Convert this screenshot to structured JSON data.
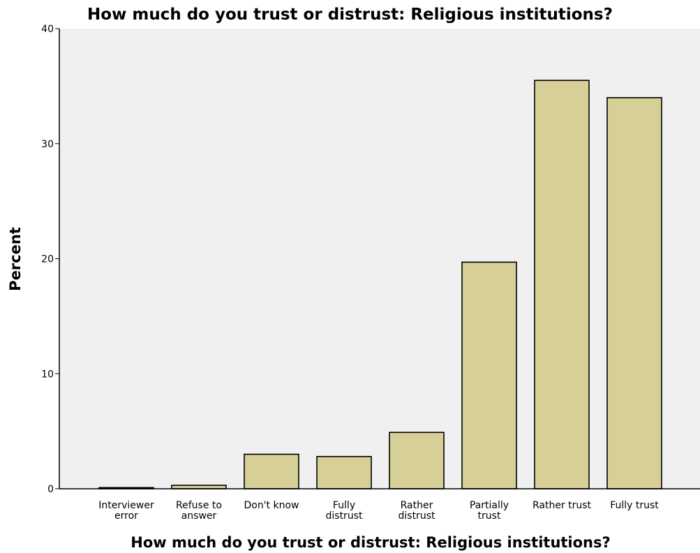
{
  "chart_data": {
    "type": "bar",
    "title": "How much do you trust or distrust: Religious institutions?",
    "xlabel": "How much do you trust or distrust: Religious institutions?",
    "ylabel": "Percent",
    "categories": [
      [
        "Interviewer",
        "error"
      ],
      [
        "Refuse to",
        "answer"
      ],
      [
        "Don't know"
      ],
      [
        "Fully",
        "distrust"
      ],
      [
        "Rather",
        "distrust"
      ],
      [
        "Partially",
        "trust"
      ],
      [
        "Rather trust"
      ],
      [
        "Fully trust"
      ]
    ],
    "values": [
      0.1,
      0.3,
      3.0,
      2.8,
      4.9,
      19.7,
      35.5,
      34.0
    ],
    "ylim": [
      0,
      40
    ],
    "yticks": [
      0,
      10,
      20,
      30,
      40
    ],
    "grid": false,
    "bar_color": "#d6cf98",
    "bar_edge_color": "#000000",
    "plot_background": "#f0f0f0"
  }
}
